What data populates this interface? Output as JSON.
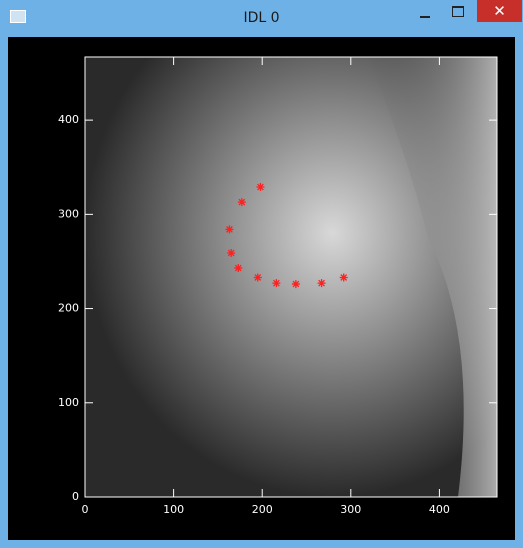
{
  "window": {
    "title": "IDL 0"
  },
  "chart_data": {
    "type": "scatter",
    "x": [
      198,
      177,
      163,
      165,
      173,
      195,
      216,
      238,
      267,
      292
    ],
    "values": [
      329,
      313,
      284,
      259,
      243,
      233,
      227,
      226,
      227,
      233
    ],
    "color": "#ff2020",
    "xlim": [
      0,
      465
    ],
    "ylim": [
      0,
      467
    ],
    "xticks": [
      0,
      100,
      200,
      300,
      400
    ],
    "yticks": [
      0,
      100,
      200,
      300,
      400
    ]
  }
}
